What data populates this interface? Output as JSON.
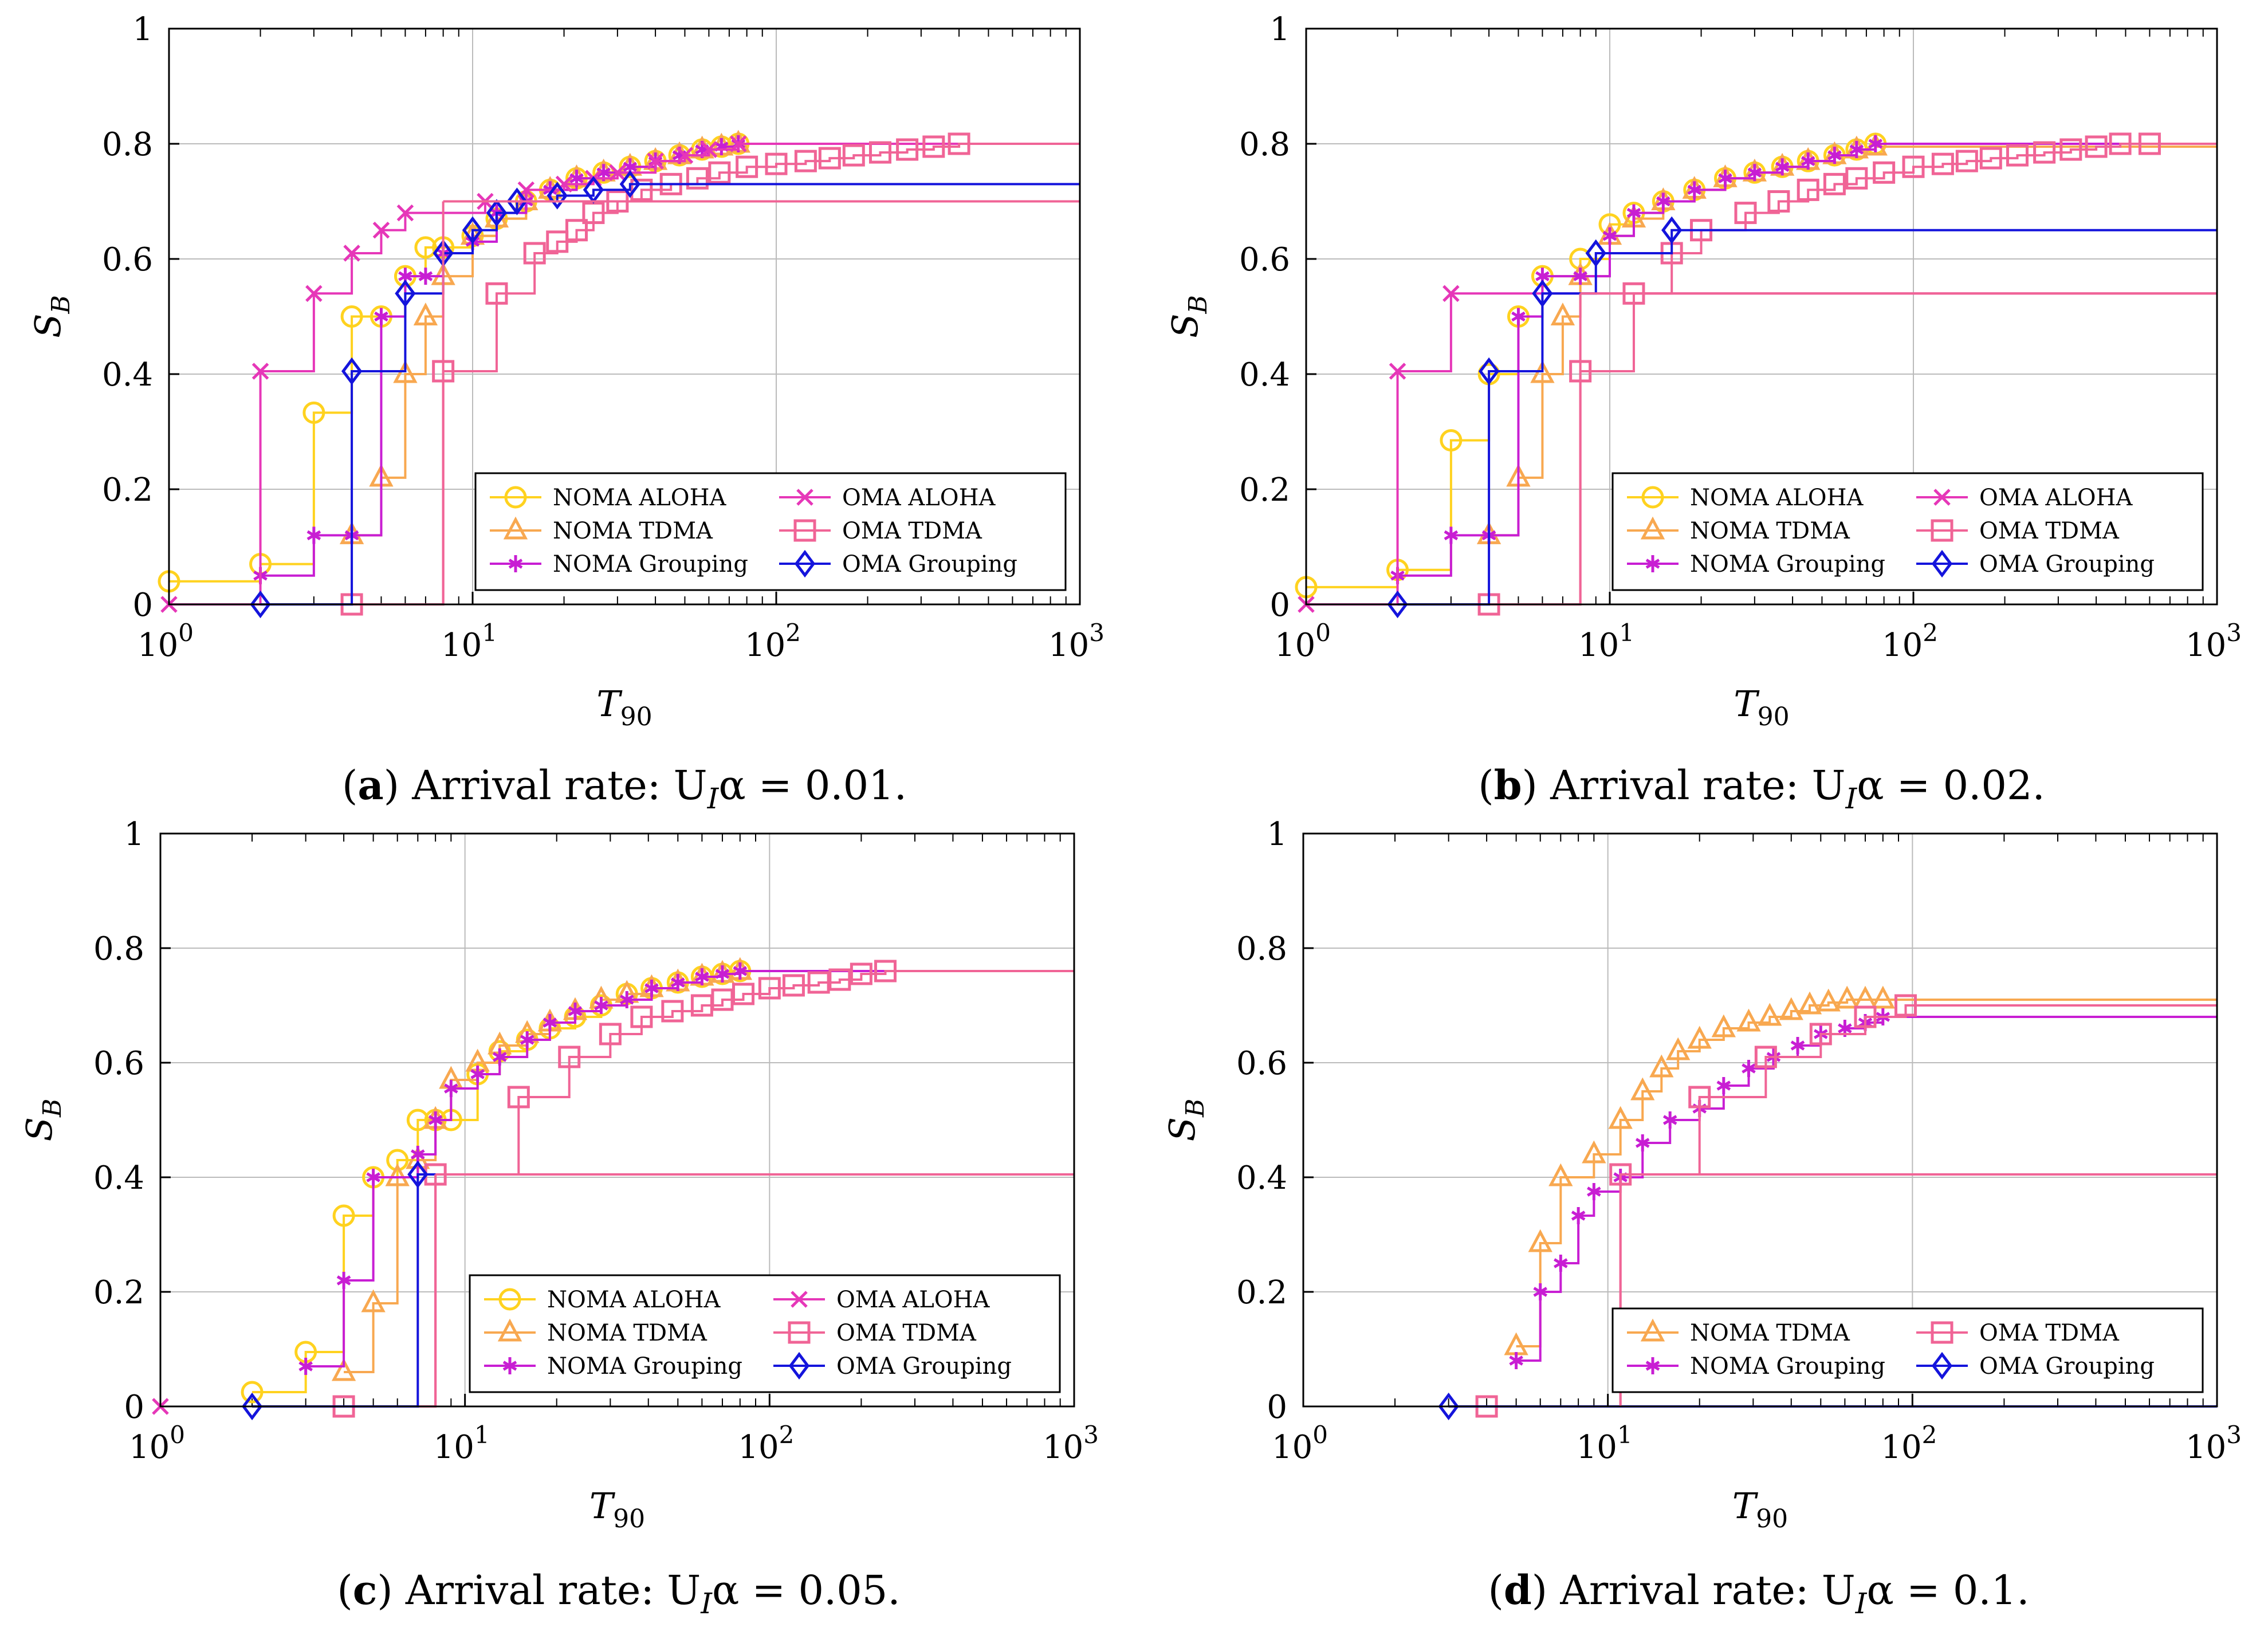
{
  "figure": {
    "colors": {
      "NOMA ALOHA": "#ffd21f",
      "NOMA TDMA": "#f8a850",
      "NOMA Grouping": "#c81ed3",
      "OMA ALOHA": "#e637b8",
      "OMA TDMA": "#f06496",
      "OMA Grouping": "#1414dc"
    },
    "markers": {
      "NOMA ALOHA": "circle",
      "NOMA TDMA": "triangle",
      "NOMA Grouping": "asterisk",
      "OMA ALOHA": "cross",
      "OMA TDMA": "square",
      "OMA Grouping": "diamond"
    }
  },
  "chart_data": [
    {
      "id": "a",
      "type": "line",
      "caption_label": "a",
      "caption_text": "Arrival rate: U",
      "caption_sub": "I",
      "caption_alpha": "α = 0.01.",
      "xlabel": "T",
      "xlabel_sub": "90",
      "ylabel": "S",
      "ylabel_sub": "B",
      "xscale": "log",
      "xlim": [
        1,
        1000
      ],
      "ylim": [
        0,
        1
      ],
      "x_ticks": [
        1,
        10,
        100,
        1000
      ],
      "x_tick_exps": [
        "0",
        "1",
        "2",
        "3"
      ],
      "y_ticks": [
        "0",
        "0.2",
        "0.4",
        "0.6",
        "0.8",
        "1"
      ],
      "grid": true,
      "legend": {
        "placement": "bottom-right",
        "columns": 2,
        "entries": [
          "NOMA ALOHA",
          "OMA ALOHA",
          "NOMA TDMA",
          "OMA TDMA",
          "NOMA Grouping",
          "OMA Grouping"
        ]
      },
      "series": [
        {
          "name": "NOMA ALOHA",
          "x": [
            1,
            2,
            3,
            4,
            5,
            6,
            7,
            8,
            10,
            12,
            15,
            18,
            22,
            27,
            33,
            40,
            48,
            57,
            66,
            75
          ],
          "values": [
            0.04,
            0.07,
            0.333,
            0.5,
            0.5,
            0.57,
            0.62,
            0.62,
            0.64,
            0.67,
            0.7,
            0.72,
            0.74,
            0.75,
            0.76,
            0.77,
            0.78,
            0.79,
            0.795,
            0.8
          ]
        },
        {
          "name": "NOMA TDMA",
          "x": [
            4,
            5,
            6,
            7,
            8,
            10,
            12,
            15,
            18,
            22,
            27,
            33,
            40,
            48,
            57,
            66,
            75
          ],
          "values": [
            0.12,
            0.22,
            0.4,
            0.5,
            0.57,
            0.64,
            0.67,
            0.7,
            0.72,
            0.74,
            0.75,
            0.76,
            0.77,
            0.78,
            0.79,
            0.795,
            0.8
          ]
        },
        {
          "name": "NOMA Grouping",
          "x": [
            2,
            3,
            4,
            5,
            6,
            7,
            8,
            10,
            12,
            15,
            18,
            22,
            27,
            33,
            40,
            48,
            57,
            66,
            75
          ],
          "values": [
            0.05,
            0.12,
            0.12,
            0.5,
            0.57,
            0.57,
            0.61,
            0.63,
            0.68,
            0.7,
            0.72,
            0.74,
            0.75,
            0.76,
            0.77,
            0.78,
            0.79,
            0.795,
            0.8
          ]
        },
        {
          "name": "OMA ALOHA",
          "x": [
            1,
            2,
            3,
            4,
            5,
            6,
            11,
            15,
            20,
            25,
            30,
            40,
            50,
            60,
            75
          ],
          "values": [
            0,
            0.405,
            0.54,
            0.61,
            0.65,
            0.68,
            0.7,
            0.72,
            0.73,
            0.74,
            0.75,
            0.77,
            0.78,
            0.79,
            0.8
          ]
        },
        {
          "name": "OMA TDMA",
          "x": [
            4,
            8,
            12,
            16,
            19,
            22,
            25,
            30,
            36,
            45,
            55,
            65,
            80,
            100,
            125,
            150,
            180,
            220,
            270,
            330,
            400
          ],
          "values": [
            0,
            0.405,
            0.54,
            0.61,
            0.63,
            0.65,
            0.68,
            0.7,
            0.72,
            0.73,
            0.74,
            0.75,
            0.76,
            0.765,
            0.77,
            0.775,
            0.78,
            0.785,
            0.79,
            0.795,
            0.8
          ]
        },
        {
          "name": "OMA Grouping",
          "x": [
            2,
            4,
            6,
            8,
            10,
            12,
            14,
            19,
            25,
            33
          ],
          "values": [
            0,
            0.405,
            0.54,
            0.61,
            0.65,
            0.68,
            0.7,
            0.71,
            0.72,
            0.73
          ]
        }
      ],
      "tails": {
        "NOMA ALOHA": 0.8,
        "NOMA TDMA": 0.8,
        "NOMA Grouping": 0.8,
        "OMA ALOHA": 0.8,
        "OMA TDMA": 0.8,
        "OMA Grouping": 0.735,
        "OMA TDMA (blocked)": 0.7
      },
      "drops": [
        {
          "series": "OMA TDMA",
          "x": 8,
          "from": 0.7,
          "to": 0
        }
      ]
    },
    {
      "id": "b",
      "type": "line",
      "caption_label": "b",
      "caption_text": "Arrival rate: U",
      "caption_sub": "I",
      "caption_alpha": "α = 0.02.",
      "xlabel": "T",
      "xlabel_sub": "90",
      "ylabel": "S",
      "ylabel_sub": "B",
      "xscale": "log",
      "xlim": [
        1,
        1000
      ],
      "ylim": [
        0,
        1
      ],
      "x_ticks": [
        1,
        10,
        100,
        1000
      ],
      "x_tick_exps": [
        "0",
        "1",
        "2",
        "3"
      ],
      "y_ticks": [
        "0",
        "0.2",
        "0.4",
        "0.6",
        "0.8",
        "1"
      ],
      "grid": true,
      "legend": {
        "placement": "bottom-right",
        "columns": 2,
        "entries": [
          "NOMA ALOHA",
          "OMA ALOHA",
          "NOMA TDMA",
          "OMA TDMA",
          "NOMA Grouping",
          "OMA Grouping"
        ]
      },
      "series": [
        {
          "name": "NOMA ALOHA",
          "x": [
            1,
            2,
            3,
            4,
            5,
            6,
            8,
            10,
            12,
            15,
            19,
            24,
            30,
            37,
            45,
            55,
            65,
            75
          ],
          "values": [
            0.03,
            0.06,
            0.285,
            0.4,
            0.5,
            0.57,
            0.6,
            0.66,
            0.68,
            0.7,
            0.72,
            0.74,
            0.75,
            0.76,
            0.77,
            0.78,
            0.79,
            0.8
          ]
        },
        {
          "name": "NOMA TDMA",
          "x": [
            4,
            5,
            6,
            7,
            8,
            10,
            12,
            15,
            19,
            24,
            30,
            37,
            45,
            55,
            65,
            75
          ],
          "values": [
            0.12,
            0.22,
            0.4,
            0.5,
            0.57,
            0.64,
            0.67,
            0.7,
            0.72,
            0.74,
            0.75,
            0.76,
            0.77,
            0.78,
            0.79,
            0.795
          ]
        },
        {
          "name": "NOMA Grouping",
          "x": [
            2,
            3,
            4,
            5,
            6,
            8,
            10,
            12,
            15,
            19,
            24,
            30,
            37,
            45,
            55,
            65,
            75
          ],
          "values": [
            0.05,
            0.12,
            0.12,
            0.5,
            0.57,
            0.57,
            0.64,
            0.68,
            0.7,
            0.72,
            0.74,
            0.75,
            0.76,
            0.77,
            0.78,
            0.79,
            0.8
          ]
        },
        {
          "name": "OMA ALOHA",
          "x": [
            1,
            2,
            3
          ],
          "values": [
            0,
            0.405,
            0.54
          ]
        },
        {
          "name": "OMA TDMA",
          "x": [
            4,
            8,
            12,
            16,
            20,
            28,
            36,
            45,
            55,
            65,
            80,
            100,
            125,
            150,
            180,
            220,
            270,
            330,
            400,
            480,
            600
          ],
          "values": [
            0,
            0.405,
            0.54,
            0.61,
            0.65,
            0.68,
            0.7,
            0.72,
            0.73,
            0.74,
            0.75,
            0.76,
            0.765,
            0.77,
            0.775,
            0.78,
            0.785,
            0.79,
            0.795,
            0.8,
            0.8
          ]
        },
        {
          "name": "OMA Grouping",
          "x": [
            2,
            4,
            6,
            9,
            16
          ],
          "values": [
            0,
            0.405,
            0.54,
            0.61,
            0.65
          ]
        }
      ],
      "tails": {
        "NOMA ALOHA": 0.8,
        "NOMA TDMA": 0.8,
        "NOMA Grouping": 0.8,
        "OMA ALOHA": 0.54,
        "OMA TDMA": 0.8,
        "OMA Grouping": 0.65
      },
      "drops": [
        {
          "series": "OMA TDMA",
          "x": 8,
          "from": 0.54,
          "to": 0
        }
      ]
    },
    {
      "id": "c",
      "type": "line",
      "caption_label": "c",
      "caption_text": "Arrival rate: U",
      "caption_sub": "I",
      "caption_alpha": "α = 0.05.",
      "xlabel": "T",
      "xlabel_sub": "90",
      "ylabel": "S",
      "ylabel_sub": "B",
      "xscale": "log",
      "xlim": [
        1,
        1000
      ],
      "ylim": [
        0,
        1
      ],
      "x_ticks": [
        1,
        10,
        100,
        1000
      ],
      "x_tick_exps": [
        "0",
        "1",
        "2",
        "3"
      ],
      "y_ticks": [
        "0",
        "0.2",
        "0.4",
        "0.6",
        "0.8",
        "1"
      ],
      "grid": true,
      "legend": {
        "placement": "bottom-right",
        "columns": 2,
        "entries": [
          "NOMA ALOHA",
          "OMA ALOHA",
          "NOMA TDMA",
          "OMA TDMA",
          "NOMA Grouping",
          "OMA Grouping"
        ]
      },
      "series": [
        {
          "name": "NOMA ALOHA",
          "x": [
            2,
            3,
            4,
            5,
            6,
            7,
            8,
            9,
            11,
            13,
            16,
            19,
            23,
            28,
            34,
            41,
            50,
            60,
            70,
            80
          ],
          "values": [
            0.025,
            0.095,
            0.333,
            0.4,
            0.43,
            0.5,
            0.5,
            0.5,
            0.58,
            0.62,
            0.64,
            0.66,
            0.68,
            0.7,
            0.72,
            0.73,
            0.74,
            0.75,
            0.755,
            0.76
          ]
        },
        {
          "name": "NOMA TDMA",
          "x": [
            4,
            5,
            6,
            7,
            8,
            9,
            11,
            13,
            16,
            19,
            23,
            28,
            34,
            41,
            50,
            60,
            70,
            80
          ],
          "values": [
            0.06,
            0.18,
            0.4,
            0.43,
            0.5,
            0.57,
            0.6,
            0.63,
            0.65,
            0.67,
            0.69,
            0.71,
            0.72,
            0.73,
            0.74,
            0.75,
            0.755,
            0.76
          ]
        },
        {
          "name": "NOMA Grouping",
          "x": [
            3,
            4,
            5,
            7,
            8,
            9,
            11,
            13,
            16,
            19,
            23,
            28,
            34,
            41,
            50,
            60,
            70,
            80
          ],
          "values": [
            0.07,
            0.22,
            0.4,
            0.44,
            0.5,
            0.555,
            0.58,
            0.61,
            0.64,
            0.67,
            0.69,
            0.7,
            0.71,
            0.73,
            0.74,
            0.75,
            0.755,
            0.76
          ]
        },
        {
          "name": "OMA ALOHA",
          "x": [
            1
          ],
          "values": [
            0
          ]
        },
        {
          "name": "OMA TDMA",
          "x": [
            4,
            8,
            15,
            22,
            30,
            38,
            48,
            60,
            70,
            82,
            100,
            120,
            145,
            170,
            200,
            240
          ],
          "values": [
            0,
            0.405,
            0.54,
            0.61,
            0.65,
            0.68,
            0.69,
            0.7,
            0.71,
            0.72,
            0.73,
            0.735,
            0.74,
            0.745,
            0.755,
            0.76
          ]
        },
        {
          "name": "OMA Grouping",
          "x": [
            2,
            7
          ],
          "values": [
            0,
            0.405
          ]
        }
      ],
      "tails": {
        "NOMA ALOHA": 0.76,
        "NOMA TDMA": 0.76,
        "NOMA Grouping": 0.76,
        "OMA TDMA": 0.76,
        "OMA Grouping": 0.405
      },
      "drops": [
        {
          "series": "OMA TDMA",
          "x": 8,
          "from": 0.405,
          "to": 0
        }
      ]
    },
    {
      "id": "d",
      "type": "line",
      "caption_label": "d",
      "caption_text": "Arrival rate: U",
      "caption_sub": "I",
      "caption_alpha": "α = 0.1.",
      "xlabel": "T",
      "xlabel_sub": "90",
      "ylabel": "S",
      "ylabel_sub": "B",
      "xscale": "log",
      "xlim": [
        1,
        1000
      ],
      "ylim": [
        0,
        1
      ],
      "x_ticks": [
        1,
        10,
        100,
        1000
      ],
      "x_tick_exps": [
        "0",
        "1",
        "2",
        "3"
      ],
      "y_ticks": [
        "0",
        "0.2",
        "0.4",
        "0.6",
        "0.8",
        "1"
      ],
      "grid": true,
      "legend": {
        "placement": "bottom-right",
        "columns": 2,
        "entries": [
          "NOMA TDMA",
          "OMA TDMA",
          "NOMA Grouping",
          "OMA Grouping"
        ]
      },
      "series": [
        {
          "name": "NOMA TDMA",
          "x": [
            5,
            6,
            7,
            9,
            11,
            13,
            15,
            17,
            20,
            24,
            29,
            34,
            40,
            46,
            53,
            61,
            70,
            80
          ],
          "values": [
            0.105,
            0.285,
            0.4,
            0.44,
            0.5,
            0.55,
            0.59,
            0.62,
            0.64,
            0.66,
            0.67,
            0.68,
            0.69,
            0.7,
            0.705,
            0.71,
            0.71,
            0.71
          ]
        },
        {
          "name": "NOMA Grouping",
          "x": [
            5,
            6,
            7,
            8,
            9,
            11,
            13,
            16,
            20,
            24,
            29,
            35,
            42,
            50,
            60,
            70,
            80
          ],
          "values": [
            0.08,
            0.2,
            0.25,
            0.333,
            0.375,
            0.4,
            0.46,
            0.5,
            0.52,
            0.56,
            0.59,
            0.61,
            0.63,
            0.65,
            0.66,
            0.67,
            0.68
          ]
        },
        {
          "name": "OMA TDMA",
          "x": [
            4,
            11,
            20,
            33,
            50,
            70,
            95
          ],
          "values": [
            0,
            0.405,
            0.54,
            0.61,
            0.65,
            0.68,
            0.7
          ]
        },
        {
          "name": "OMA Grouping",
          "x": [
            3
          ],
          "values": [
            0
          ]
        }
      ],
      "tails": {
        "NOMA TDMA": 0.71,
        "NOMA Grouping": 0.68,
        "OMA TDMA": 0.7,
        "OMA Grouping": 0
      },
      "drops": [
        {
          "series": "OMA TDMA",
          "x": 11,
          "from": 0.405,
          "to": 0
        }
      ]
    }
  ]
}
